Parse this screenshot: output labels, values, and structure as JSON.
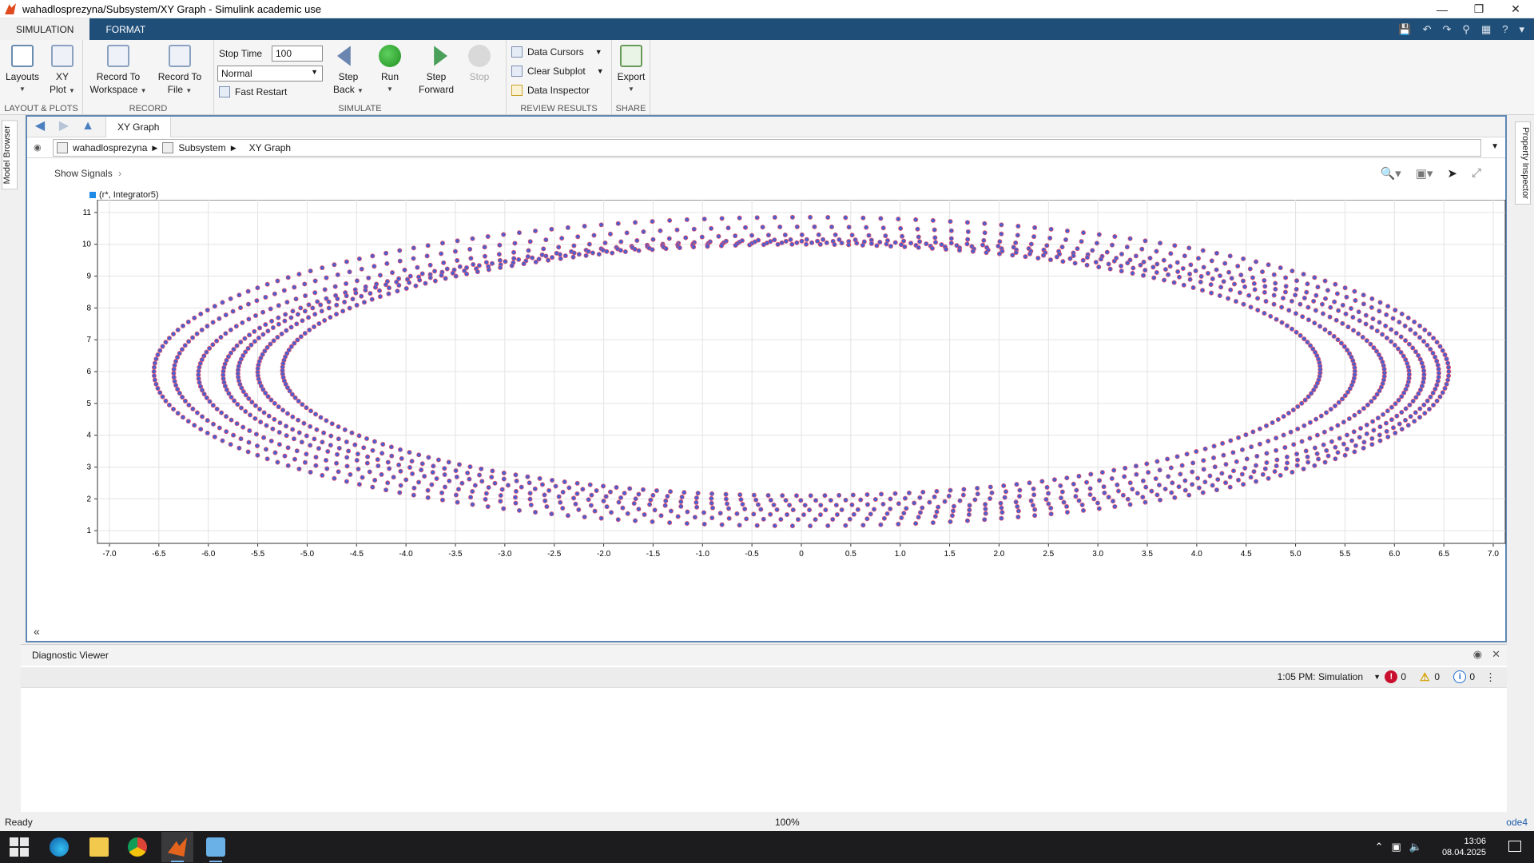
{
  "window": {
    "title": "wahadlosprezyna/Subsystem/XY Graph - Simulink academic use"
  },
  "ribbon_tabs": [
    "SIMULATION",
    "FORMAT"
  ],
  "ribbon": {
    "groups": {
      "layout": "LAYOUT & PLOTS",
      "record": "RECORD",
      "simulate": "SIMULATE",
      "review": "REVIEW RESULTS",
      "share": "SHARE"
    },
    "layouts": [
      "Layouts"
    ],
    "xyplot": [
      "XY",
      "Plot"
    ],
    "record_ws": [
      "Record To",
      "Workspace"
    ],
    "record_file": [
      "Record To",
      "File"
    ],
    "stop_time_label": "Stop Time",
    "stop_time_value": "100",
    "mode": "Normal",
    "fast_restart": "Fast Restart",
    "step_back": [
      "Step",
      "Back"
    ],
    "run": "Run",
    "step_forward": [
      "Step",
      "Forward"
    ],
    "stop": "Stop",
    "data_cursors": "Data Cursors",
    "clear_subplot": "Clear Subplot",
    "data_inspector": "Data Inspector",
    "export": "Export"
  },
  "side": {
    "model_browser": "Model Browser",
    "property_inspector": "Property Inspector"
  },
  "editor": {
    "tab": "XY Graph",
    "breadcrumb": [
      "wahadlosprezyna",
      "Subsystem",
      "XY Graph"
    ],
    "show_signals": "Show Signals"
  },
  "chart_data": {
    "type": "scatter",
    "legend": "(r*, Integrator5)",
    "xlim": [
      -7.0,
      7.0
    ],
    "ylim": [
      1,
      11
    ],
    "xticks": [
      "-7.0",
      "-6.5",
      "-6.0",
      "-5.5",
      "-5.0",
      "-4.5",
      "-4.0",
      "-3.5",
      "-3.0",
      "-2.5",
      "-2.0",
      "-1.5",
      "-1.0",
      "-0.5",
      "0",
      "0.5",
      "1.0",
      "1.5",
      "2.0",
      "2.5",
      "3.0",
      "3.5",
      "4.0",
      "4.5",
      "5.0",
      "5.5",
      "6.0",
      "6.5",
      "7.0"
    ],
    "yticks": [
      "1",
      "2",
      "3",
      "4",
      "5",
      "6",
      "7",
      "8",
      "9",
      "10",
      "11"
    ],
    "grid": true,
    "marker_color": "#4a5fd0",
    "marker_edge": "#e0506a",
    "series": [
      {
        "rx": 6.55,
        "ry": 4.85,
        "cx": 0.0,
        "cy": 6.0
      },
      {
        "rx": 6.4,
        "ry": 4.6,
        "cx": 0.05,
        "cy": 5.95
      },
      {
        "rx": 6.2,
        "ry": 4.4,
        "cx": 0.1,
        "cy": 5.9
      },
      {
        "rx": 6.0,
        "ry": 4.25,
        "cx": 0.15,
        "cy": 5.9
      },
      {
        "rx": 5.8,
        "ry": 4.15,
        "cx": 0.1,
        "cy": 5.95
      },
      {
        "rx": 5.55,
        "ry": 4.05,
        "cx": 0.05,
        "cy": 6.0
      },
      {
        "rx": 5.25,
        "ry": 3.95,
        "cx": 0.0,
        "cy": 6.05
      }
    ]
  },
  "diagnostic": {
    "title": "Diagnostic Viewer",
    "run": "1:05 PM: Simulation",
    "errors": "0",
    "warnings": "0",
    "info": "0"
  },
  "status": {
    "ready": "Ready",
    "zoom": "100%",
    "solver": "ode4"
  },
  "taskbar": {
    "time": "13:06",
    "date": "08.04.2025"
  }
}
